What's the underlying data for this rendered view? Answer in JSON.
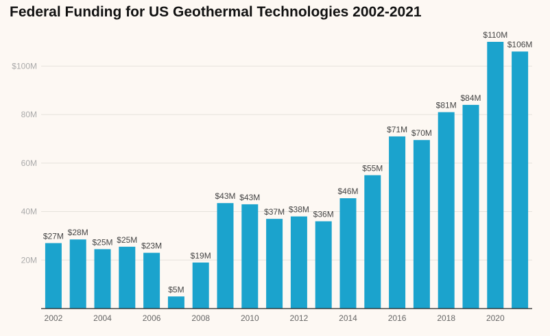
{
  "title": "Federal Funding for US Geothermal Technologies 2002-2021",
  "colors": {
    "bar": "#1ba3cd",
    "background": "#fdf8f3"
  },
  "chart_data": {
    "type": "bar",
    "title": "Federal Funding for US Geothermal Technologies 2002-2021",
    "xlabel": "",
    "ylabel": "",
    "categories": [
      "2002",
      "2003",
      "2004",
      "2005",
      "2006",
      "2007",
      "2008",
      "2009",
      "2010",
      "2011",
      "2012",
      "2013",
      "2014",
      "2015",
      "2016",
      "2017",
      "2018",
      "2019",
      "2020",
      "2021"
    ],
    "values": [
      27,
      28.5,
      24.5,
      25.5,
      23,
      5,
      19,
      43.5,
      43,
      37,
      38,
      36,
      45.5,
      55,
      71,
      69.5,
      81,
      84,
      110,
      106
    ],
    "data_labels": [
      "$27M",
      "$28M",
      "$25M",
      "$25M",
      "$23M",
      "$5M",
      "$19M",
      "$43M",
      "$43M",
      "$37M",
      "$38M",
      "$36M",
      "$46M",
      "$55M",
      "$71M",
      "$70M",
      "$81M",
      "$84M",
      "$110M",
      "$106M"
    ],
    "x_tick_labels": [
      "2002",
      "2004",
      "2006",
      "2008",
      "2010",
      "2012",
      "2014",
      "2016",
      "2018",
      "2020"
    ],
    "y_ticks": [
      20,
      40,
      60,
      80,
      100
    ],
    "y_tick_labels": [
      "20M",
      "40M",
      "60M",
      "80M",
      "$100M"
    ],
    "ylim": [
      0,
      110
    ],
    "grid": true,
    "legend": "none"
  }
}
